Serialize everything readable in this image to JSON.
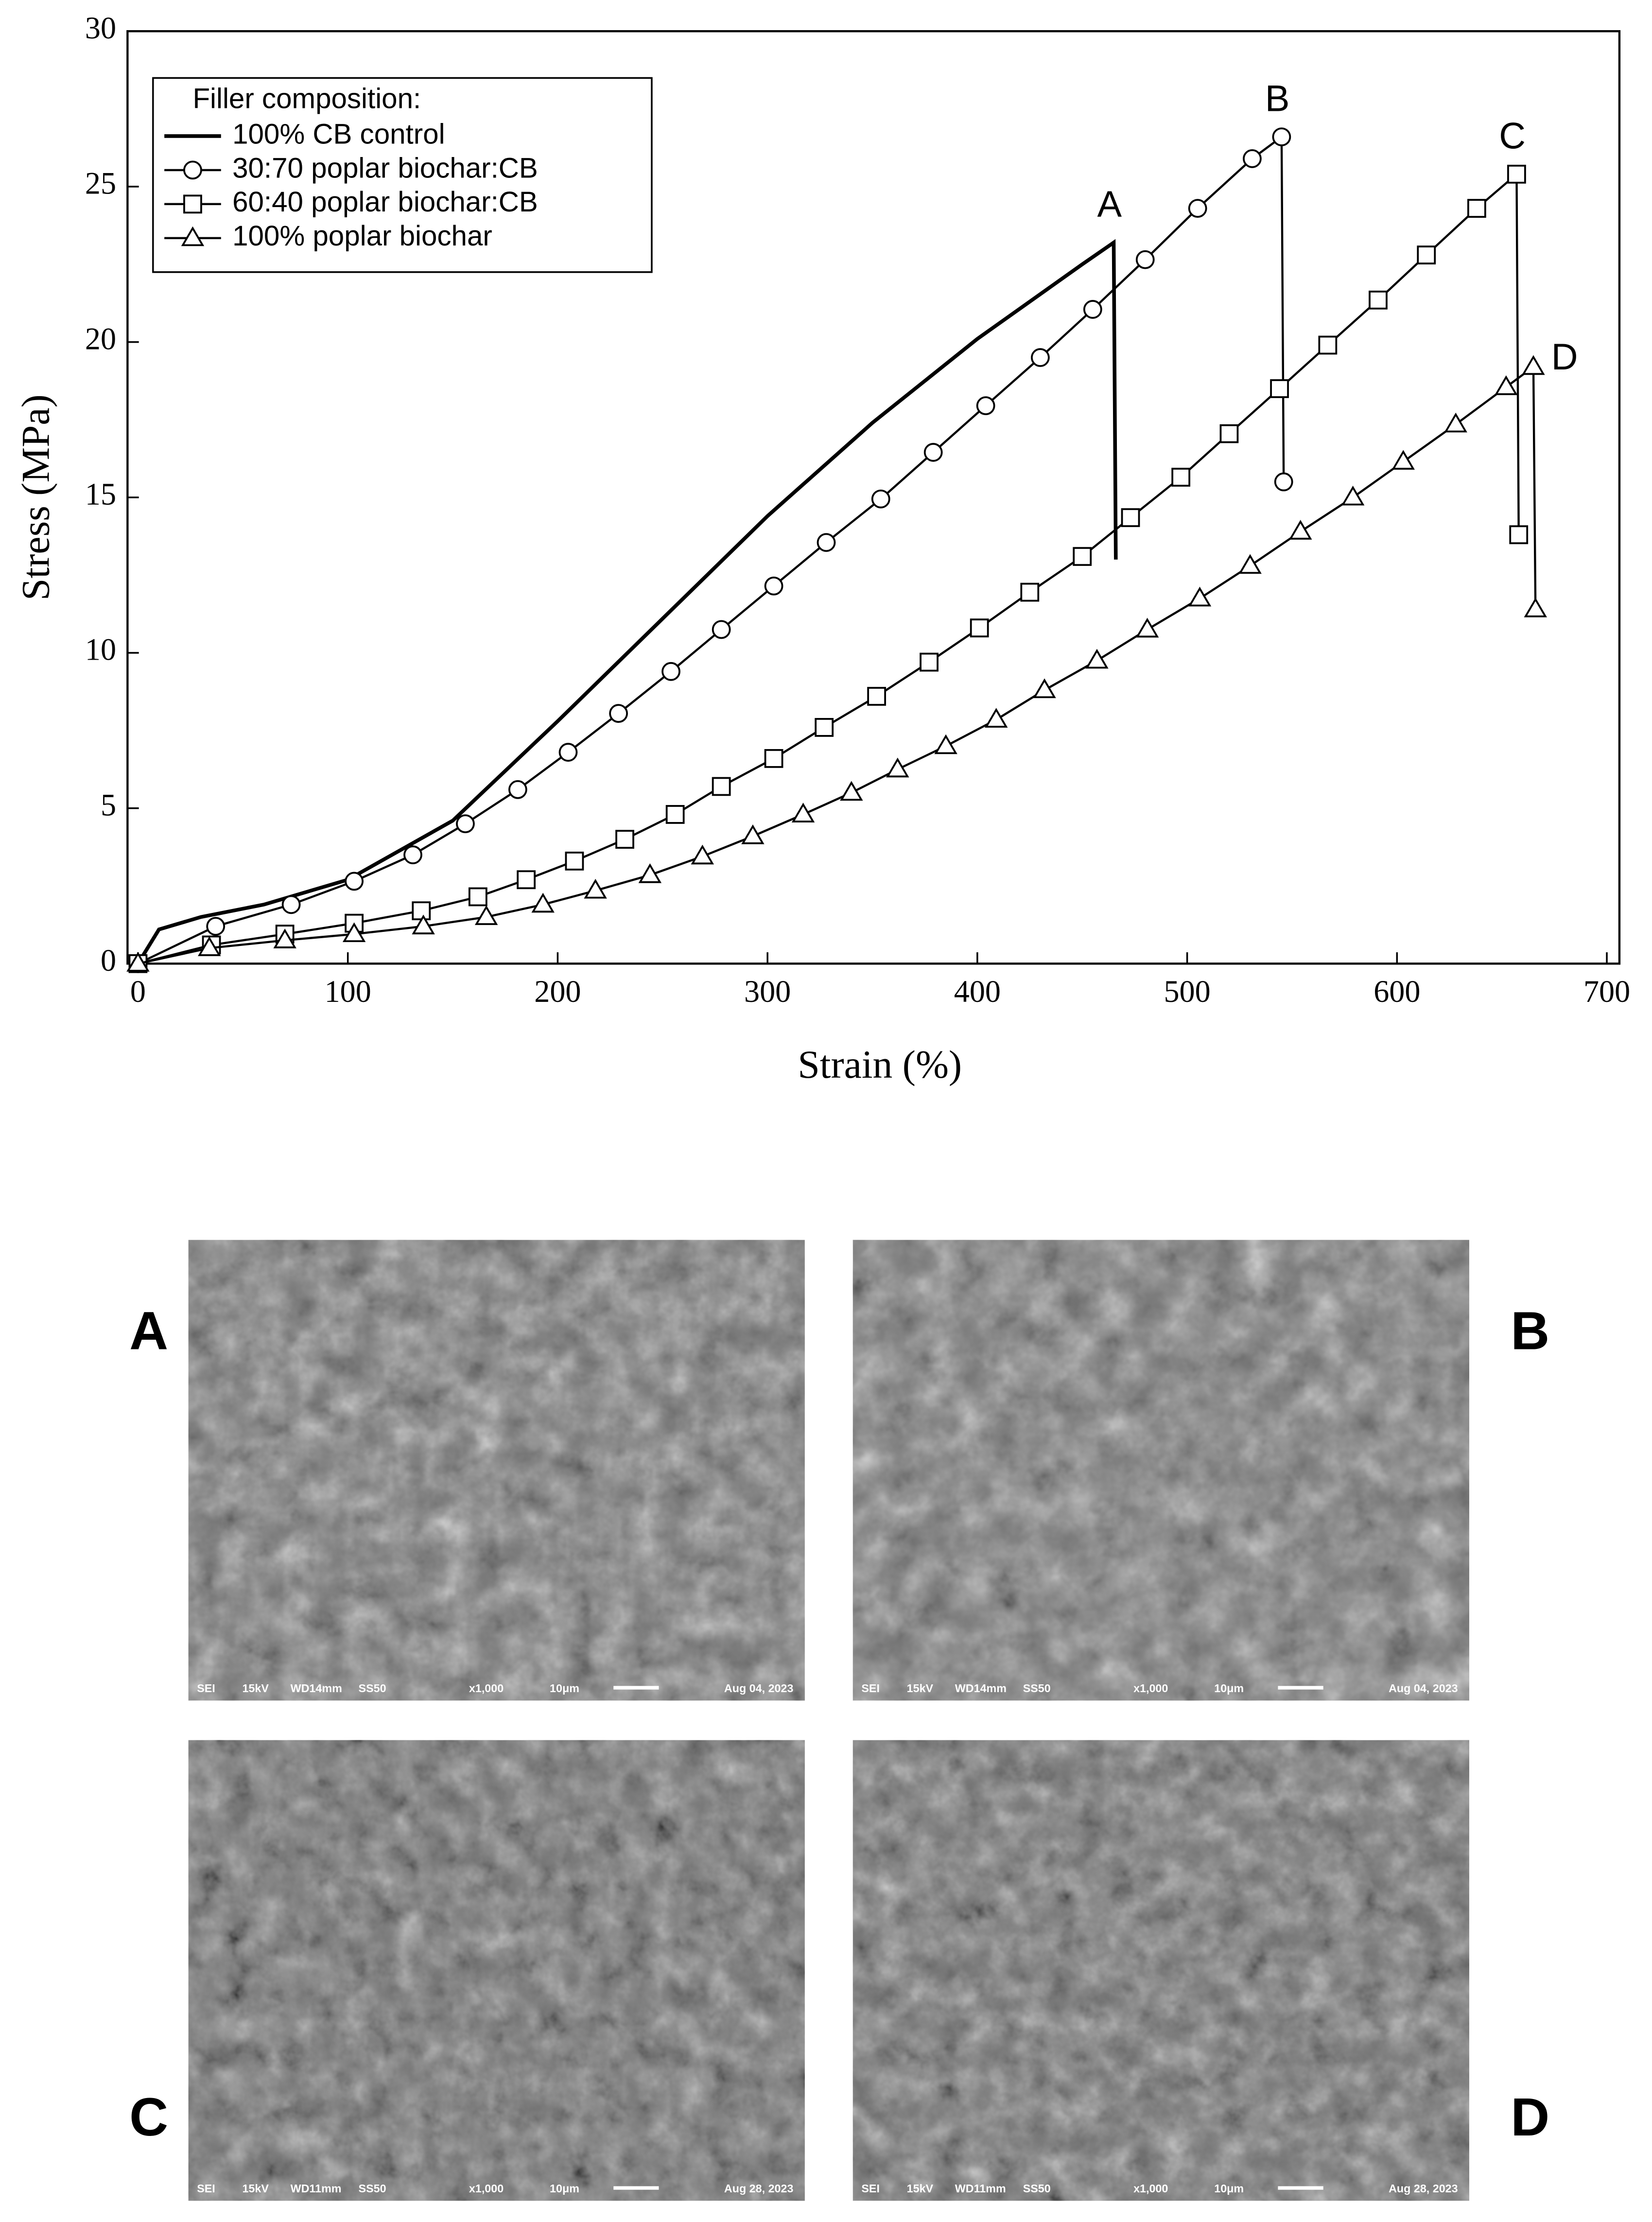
{
  "chart_data": {
    "type": "line",
    "xlabel": "Strain (%)",
    "ylabel": "Stress (MPa)",
    "xlim": [
      -5,
      706
    ],
    "ylim": [
      0,
      30
    ],
    "xticks": [
      0,
      100,
      200,
      300,
      400,
      500,
      600,
      700
    ],
    "yticks": [
      0,
      5,
      10,
      15,
      20,
      25,
      30
    ],
    "legend_title": "Filler composition:",
    "legend": "upper left",
    "annotations": [
      "A",
      "B",
      "C",
      "D"
    ],
    "series": [
      {
        "name": "100% CB control",
        "color": "#000000",
        "marker": "none",
        "x": [
          0,
          10,
          30,
          60,
          100,
          150,
          200,
          250,
          300,
          350,
          400,
          450,
          465,
          466
        ],
        "values": [
          0,
          1.1,
          1.5,
          1.9,
          2.7,
          4.6,
          7.8,
          11.1,
          14.4,
          17.4,
          20.1,
          22.5,
          23.2,
          13
        ]
      },
      {
        "name": "30:70 poplar biochar:CB",
        "color": "#000000",
        "marker": "circle",
        "x": [
          0,
          37,
          73,
          103,
          131,
          156,
          181,
          205,
          229,
          254,
          278,
          303,
          328,
          354,
          379,
          404,
          430,
          455,
          480,
          505,
          531,
          545,
          546
        ],
        "values": [
          0,
          1.2,
          1.9,
          2.65,
          3.5,
          4.5,
          5.6,
          6.8,
          8.05,
          9.4,
          10.75,
          12.15,
          13.55,
          14.95,
          16.45,
          17.95,
          19.5,
          21.05,
          22.65,
          24.3,
          25.9,
          26.6,
          15.5
        ]
      },
      {
        "name": "60:40 poplar biochar:CB",
        "color": "#000000",
        "marker": "square",
        "x": [
          0,
          35,
          70,
          103,
          135,
          162,
          185,
          208,
          232,
          256,
          278,
          303,
          327,
          352,
          377,
          401,
          425,
          450,
          473,
          497,
          520,
          544,
          567,
          591,
          614,
          638,
          657,
          658
        ],
        "values": [
          0,
          0.6,
          0.95,
          1.3,
          1.7,
          2.15,
          2.7,
          3.3,
          4.0,
          4.8,
          5.7,
          6.6,
          7.6,
          8.6,
          9.7,
          10.8,
          11.95,
          13.1,
          14.35,
          15.65,
          17.05,
          18.5,
          19.9,
          21.35,
          22.8,
          24.3,
          25.4,
          13.8
        ]
      },
      {
        "name": "100% poplar biochar",
        "color": "#000000",
        "marker": "triangle",
        "x": [
          0,
          34,
          70,
          103,
          136,
          166,
          193,
          218,
          244,
          269,
          293,
          317,
          340,
          362,
          385,
          409,
          432,
          457,
          481,
          506,
          530,
          554,
          579,
          603,
          628,
          652,
          665,
          666
        ],
        "values": [
          0,
          0.5,
          0.75,
          0.95,
          1.2,
          1.5,
          1.9,
          2.35,
          2.85,
          3.45,
          4.1,
          4.8,
          5.5,
          6.25,
          7.0,
          7.85,
          8.8,
          9.75,
          10.75,
          11.75,
          12.8,
          13.9,
          15.0,
          16.15,
          17.35,
          18.55,
          19.2,
          11.4
        ]
      }
    ]
  },
  "micrographs": [
    {
      "label": "A",
      "info": [
        "SEI",
        "15kV",
        "WD14mm",
        "SS50",
        "x1,000",
        "10μm",
        "Aug 04, 2023"
      ]
    },
    {
      "label": "B",
      "info": [
        "SEI",
        "15kV",
        "WD14mm",
        "SS50",
        "x1,000",
        "10μm",
        "Aug 04, 2023"
      ]
    },
    {
      "label": "C",
      "info": [
        "SEI",
        "15kV",
        "WD11mm",
        "SS50",
        "x1,000",
        "10μm",
        "Aug 28, 2023"
      ]
    },
    {
      "label": "D",
      "info": [
        "SEI",
        "15kV",
        "WD11mm",
        "SS50",
        "x1,000",
        "10μm",
        "Aug 28, 2023"
      ]
    }
  ]
}
